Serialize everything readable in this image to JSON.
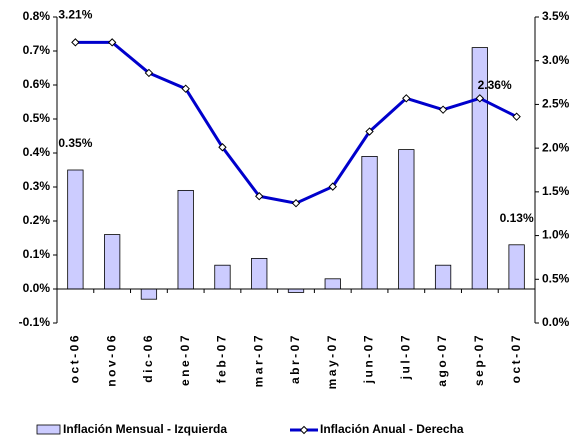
{
  "chart_data": {
    "type": "bar",
    "categories": [
      "oct-06",
      "nov-06",
      "dic-06",
      "ene-07",
      "feb-07",
      "mar-07",
      "abr-07",
      "may-07",
      "jun-07",
      "jul-07",
      "ago-07",
      "sep-07",
      "oct-07"
    ],
    "series": [
      {
        "name": "Inflación Mensual - Izquierda",
        "type": "bar",
        "color": "#ccccff",
        "values": [
          0.35,
          0.16,
          -0.03,
          0.29,
          0.07,
          0.09,
          -0.01,
          0.03,
          0.39,
          0.41,
          0.07,
          0.71,
          0.13
        ],
        "value_labels": [
          "0.35%",
          null,
          null,
          null,
          null,
          null,
          null,
          null,
          null,
          null,
          null,
          null,
          "0.13%"
        ]
      },
      {
        "name": "Inflación Anual - Derecha",
        "type": "line",
        "axis": "y2",
        "color": "#0000cc",
        "values": [
          3.21,
          3.21,
          2.86,
          2.68,
          2.01,
          1.45,
          1.37,
          1.56,
          2.19,
          2.57,
          2.44,
          2.57,
          2.36
        ],
        "value_labels": [
          "3.21%",
          null,
          null,
          null,
          null,
          null,
          null,
          null,
          null,
          null,
          null,
          null,
          "2.36%"
        ]
      }
    ],
    "ylim": [
      -0.1,
      0.8
    ],
    "yticks": [
      {
        "value": -0.1,
        "label": "-0.1%"
      },
      {
        "value": 0,
        "label": "0.0%"
      },
      {
        "value": 0.1,
        "label": "0.1%"
      },
      {
        "value": 0.2,
        "label": "0.2%"
      },
      {
        "value": 0.3,
        "label": "0.3%"
      },
      {
        "value": 0.4,
        "label": "0.4%"
      },
      {
        "value": 0.5,
        "label": "0.5%"
      },
      {
        "value": 0.6,
        "label": "0.6%"
      },
      {
        "value": 0.7,
        "label": "0.7%"
      },
      {
        "value": 0.8,
        "label": "0.8%"
      }
    ],
    "y2lim": [
      0,
      3.5
    ],
    "y2ticks": [
      {
        "value": 0,
        "label": "0.0%"
      },
      {
        "value": 0.5,
        "label": "0.5%"
      },
      {
        "value": 1,
        "label": "1.0%"
      },
      {
        "value": 1.5,
        "label": "1.5%"
      },
      {
        "value": 2,
        "label": "2.0%"
      },
      {
        "value": 2.5,
        "label": "2.5%"
      },
      {
        "value": 3,
        "label": "3.0%"
      },
      {
        "value": 3.5,
        "label": "3.5%"
      }
    ],
    "grid": false
  }
}
